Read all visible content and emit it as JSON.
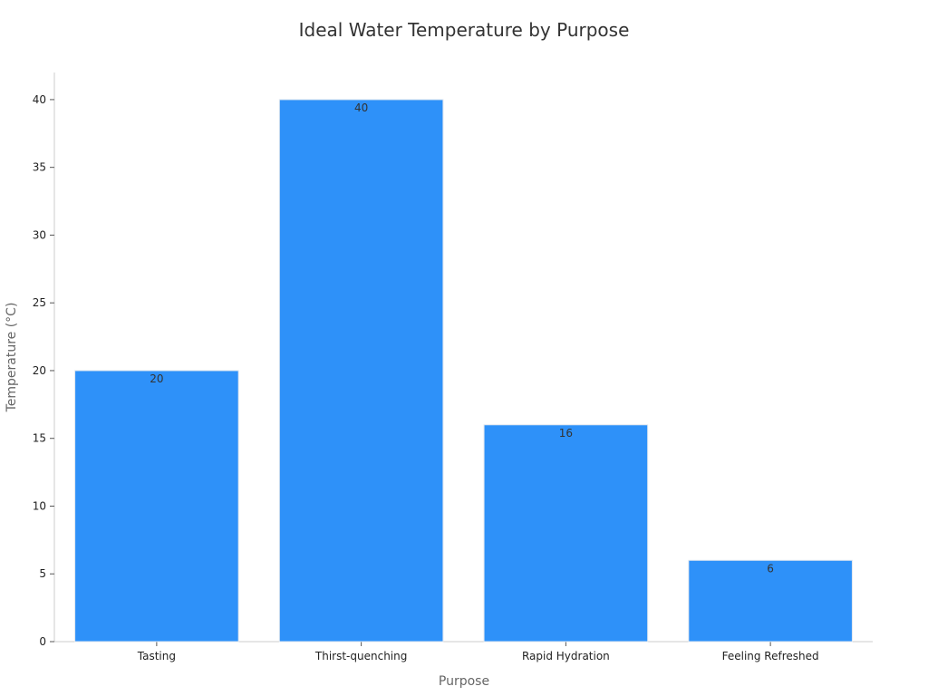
{
  "chart_data": {
    "type": "bar",
    "title": "Ideal Water Temperature by Purpose",
    "xlabel": "Purpose",
    "ylabel": "Temperature (°C)",
    "categories": [
      "Tasting",
      "Thirst-quenching",
      "Rapid Hydration",
      "Feeling Refreshed"
    ],
    "values": [
      20,
      40,
      16,
      6
    ],
    "data_labels": [
      "20",
      "40",
      "16",
      "6"
    ],
    "ylim": [
      0,
      42
    ],
    "yticks": [
      0,
      5,
      10,
      15,
      20,
      25,
      30,
      35,
      40
    ],
    "grid": false,
    "legend": "none",
    "bar_color": "#2e91f9",
    "bar_edge_color": "#e0e7ef",
    "axis_color": "#cccccc"
  }
}
